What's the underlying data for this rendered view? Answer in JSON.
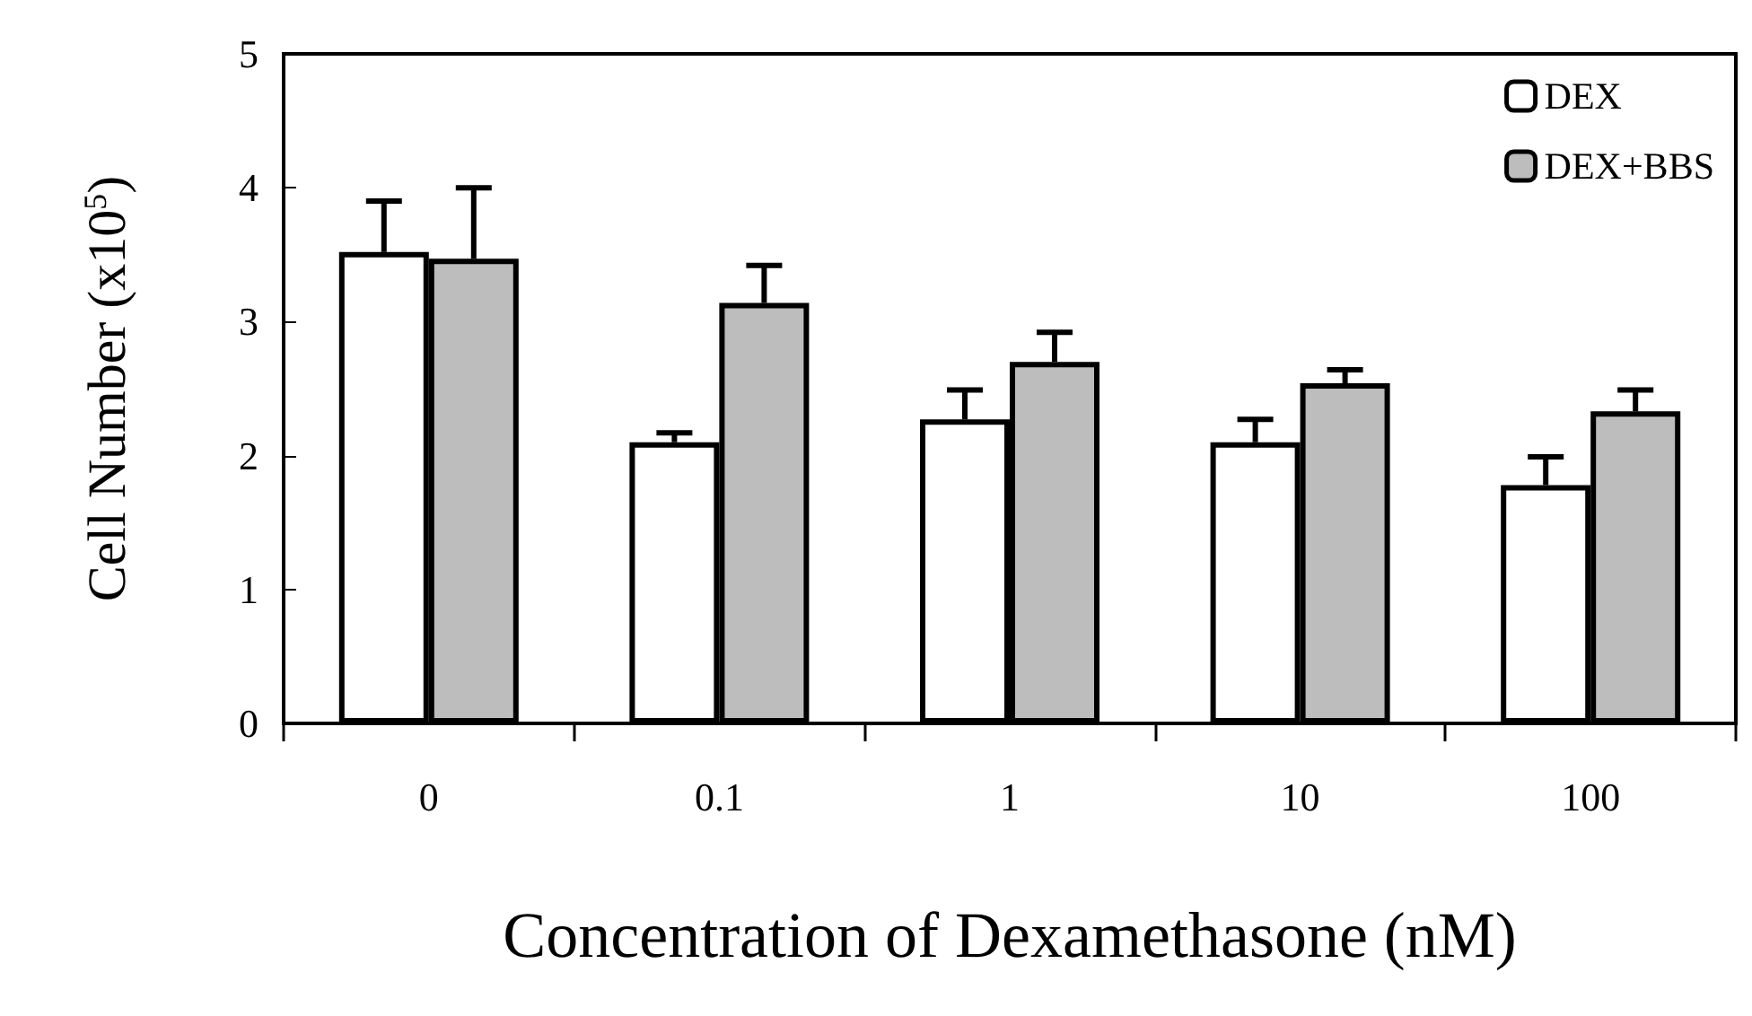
{
  "chart_data": {
    "type": "bar",
    "xlabel": "Concentration of Dexamethasone (nM)",
    "ylabel": "Cell Number (x10$^{5}$)",
    "categories": [
      "0",
      "0.1",
      "1",
      "10",
      "100"
    ],
    "series": [
      {
        "name": "DEX",
        "color": "#ffffff",
        "values": [
          3.52,
          2.1,
          2.27,
          2.1,
          1.78
        ],
        "errors": [
          [
            3.52,
            3.9
          ],
          [
            2.1,
            2.17
          ],
          [
            2.27,
            2.49
          ],
          [
            2.1,
            2.27
          ],
          [
            1.78,
            1.99
          ]
        ]
      },
      {
        "name": "DEX+BBS",
        "color": "#bdbdbd",
        "values": [
          3.47,
          3.14,
          2.7,
          2.54,
          2.33
        ],
        "errors": [
          [
            3.47,
            4.0
          ],
          [
            3.14,
            3.42
          ],
          [
            2.7,
            2.92
          ],
          [
            2.54,
            2.64
          ],
          [
            2.33,
            2.49
          ]
        ]
      }
    ],
    "ylim": [
      0,
      5
    ],
    "yticks": [
      0,
      1,
      2,
      3,
      4,
      5
    ],
    "grid": false,
    "legend": "top right"
  }
}
